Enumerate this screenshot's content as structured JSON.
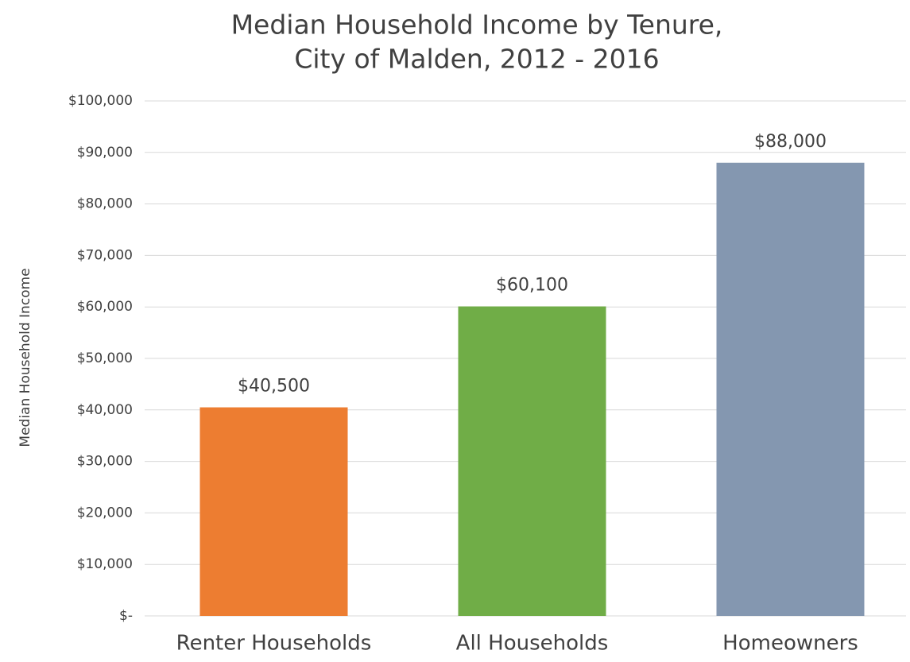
{
  "chart_data": {
    "type": "bar",
    "title": [
      "Median Household Income by Tenure,",
      "City of Malden, 2012 - 2016"
    ],
    "y_label": "Median Household Income",
    "categories": [
      "Renter Households",
      "All Households",
      "Homeowners"
    ],
    "values": [
      40500,
      60100,
      88000
    ],
    "value_labels": [
      "$40,500",
      "$60,100",
      "$88,000"
    ],
    "colors": [
      "#ed7d31",
      "#70ad47",
      "#8497b0"
    ],
    "ylim": [
      0,
      100000
    ],
    "yticks": [
      {
        "value": 0,
        "label": "$-"
      },
      {
        "value": 10000,
        "label": "$10,000"
      },
      {
        "value": 20000,
        "label": "$20,000"
      },
      {
        "value": 30000,
        "label": "$30,000"
      },
      {
        "value": 40000,
        "label": "$40,000"
      },
      {
        "value": 50000,
        "label": "$50,000"
      },
      {
        "value": 60000,
        "label": "$60,000"
      },
      {
        "value": 70000,
        "label": "$70,000"
      },
      {
        "value": 80000,
        "label": "$80,000"
      },
      {
        "value": 90000,
        "label": "$90,000"
      },
      {
        "value": 100000,
        "label": "$100,000"
      }
    ],
    "grid": true
  }
}
